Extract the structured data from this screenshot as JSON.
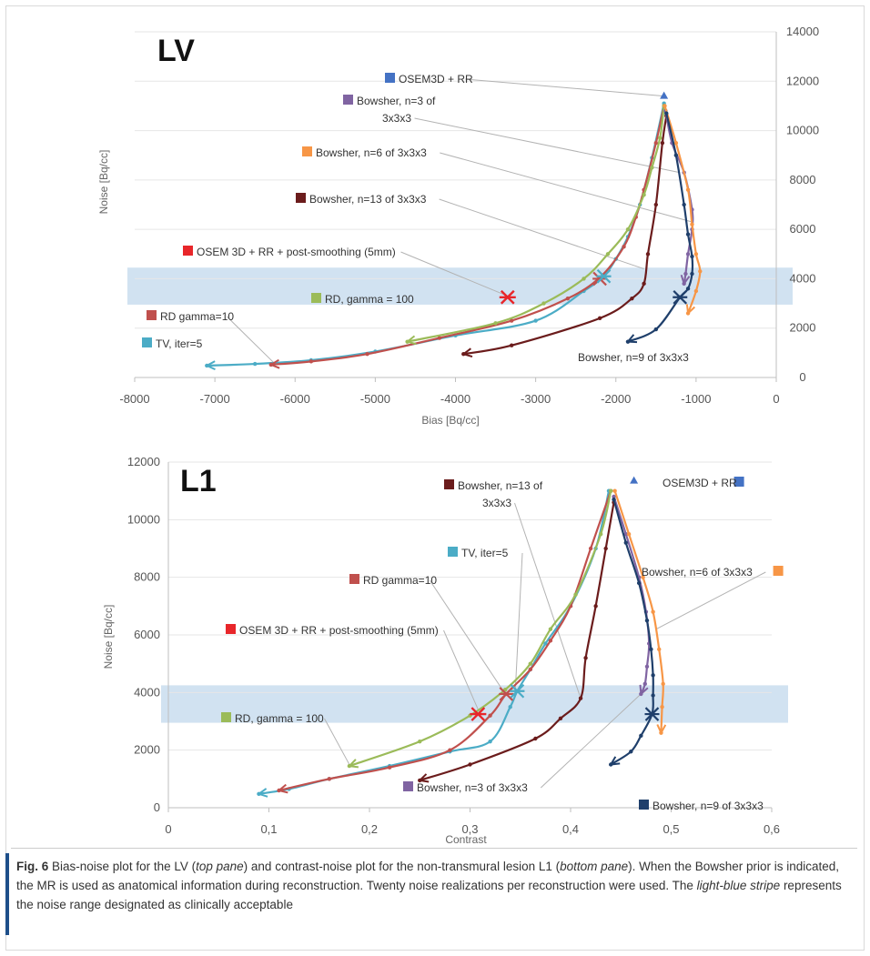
{
  "chart_data": [
    {
      "type": "line",
      "panel_label": "LV",
      "xlabel": "Bias [Bq/cc]",
      "ylabel": "Noise [Bq/cc]",
      "xlim": [
        -8000,
        0
      ],
      "ylim": [
        0,
        14000
      ],
      "x_ticks": [
        "-8000",
        "-7000",
        "-6000",
        "-5000",
        "-4000",
        "-3000",
        "-2000",
        "-1000",
        "0"
      ],
      "y_ticks": [
        "0",
        "2000",
        "4000",
        "6000",
        "8000",
        "10000",
        "12000",
        "14000"
      ],
      "y_axis_side": "right",
      "acceptable_noise_band": [
        2950,
        4450
      ],
      "series": [
        {
          "name": "OSEM3D + RR",
          "color": "#4472c4",
          "marker": "triangle",
          "points": [
            [
              -1400,
              11400
            ]
          ]
        },
        {
          "name": "TV, iter=5",
          "color": "#4bacc6",
          "points": [
            [
              -1400,
              11100
            ],
            [
              -1550,
              8900
            ],
            [
              -1700,
              7000
            ],
            [
              -1850,
              5700
            ],
            [
              -2000,
              4800
            ],
            [
              -2150,
              4100
            ],
            [
              -2400,
              3500
            ],
            [
              -3000,
              2300
            ],
            [
              -4000,
              1700
            ],
            [
              -5000,
              1050
            ],
            [
              -5800,
              700
            ],
            [
              -6500,
              550
            ],
            [
              -7100,
              480
            ]
          ]
        },
        {
          "name": "RD gamma=10",
          "color": "#c0504d",
          "points": [
            [
              -1400,
              11000
            ],
            [
              -1500,
              9500
            ],
            [
              -1650,
              7600
            ],
            [
              -1750,
              6500
            ],
            [
              -1900,
              5300
            ],
            [
              -2200,
              4050
            ],
            [
              -2600,
              3200
            ],
            [
              -3300,
              2300
            ],
            [
              -4200,
              1600
            ],
            [
              -5100,
              950
            ],
            [
              -5800,
              650
            ],
            [
              -6300,
              520
            ]
          ]
        },
        {
          "name": "RD, gamma = 100",
          "color": "#9bbb59",
          "points": [
            [
              -1400,
              11000
            ],
            [
              -1450,
              9700
            ],
            [
              -1550,
              8500
            ],
            [
              -1650,
              7400
            ],
            [
              -1850,
              6000
            ],
            [
              -2100,
              5000
            ],
            [
              -2400,
              4000
            ],
            [
              -2900,
              3000
            ],
            [
              -3500,
              2200
            ],
            [
              -4600,
              1450
            ]
          ]
        },
        {
          "name": "Bowsher, n=13 of 3x3x3",
          "color": "#6b1c1c",
          "points": [
            [
              -1370,
              10600
            ],
            [
              -1420,
              9500
            ],
            [
              -1500,
              7000
            ],
            [
              -1600,
              5000
            ],
            [
              -1650,
              3800
            ],
            [
              -1800,
              3200
            ],
            [
              -2200,
              2400
            ],
            [
              -3300,
              1300
            ],
            [
              -3900,
              950
            ]
          ]
        },
        {
          "name": "Bowsher, n=3 of 3x3x3",
          "color": "#8064a2",
          "points": [
            [
              -1380,
              10800
            ],
            [
              -1300,
              9500
            ],
            [
              -1150,
              8300
            ],
            [
              -1050,
              6800
            ],
            [
              -1050,
              6000
            ],
            [
              -1100,
              5000
            ],
            [
              -1130,
              4200
            ],
            [
              -1150,
              3800
            ]
          ]
        },
        {
          "name": "Bowsher, n=6 of 3x3x3",
          "color": "#f79646",
          "points": [
            [
              -1390,
              11000
            ],
            [
              -1250,
              9500
            ],
            [
              -1100,
              7600
            ],
            [
              -1050,
              6200
            ],
            [
              -1000,
              5000
            ],
            [
              -950,
              4300
            ],
            [
              -1000,
              3500
            ],
            [
              -1100,
              2600
            ]
          ]
        },
        {
          "name": "Bowsher, n=9 of 3x3x3",
          "color": "#1f3f6b",
          "points": [
            [
              -1370,
              10700
            ],
            [
              -1250,
              9000
            ],
            [
              -1150,
              7000
            ],
            [
              -1100,
              5800
            ],
            [
              -1050,
              4900
            ],
            [
              -1050,
              4200
            ],
            [
              -1100,
              3600
            ],
            [
              -1200,
              3250
            ],
            [
              -1500,
              1950
            ],
            [
              -1850,
              1450
            ]
          ]
        },
        {
          "name": "OSEM 3D + RR + post-smoothing (5mm)",
          "color": "#e8262a",
          "marker": "star",
          "points": [
            [
              -3350,
              3250
            ]
          ]
        }
      ],
      "end_markers": [
        {
          "color": "#c0504d",
          "points": [
            [
              -2200,
              4000
            ]
          ]
        },
        {
          "color": "#4bacc6",
          "points": [
            [
              -2150,
              4100
            ]
          ]
        },
        {
          "color": "#1f3f6b",
          "points": [
            [
              -1200,
              3250
            ]
          ]
        }
      ],
      "annotations": [
        {
          "text": "OSEM3D + RR",
          "color": "#4472c4",
          "target": [
            -1400,
            11400
          ]
        },
        {
          "text": "Bowsher, n=3 of",
          "text2": "3x3x3",
          "color": "#8064a2",
          "target": [
            -1200,
            8300
          ]
        },
        {
          "text": "Bowsher, n=6 of 3x3x3",
          "color": "#f79646",
          "target": [
            -1050,
            6300
          ]
        },
        {
          "text": "Bowsher, n=13 of 3x3x3",
          "color": "#6b1c1c",
          "target": [
            -1650,
            4400
          ]
        },
        {
          "text": "OSEM 3D + RR + post-smoothing (5mm)",
          "color": "#e8262a",
          "target": [
            -3350,
            3300
          ]
        },
        {
          "text": "RD, gamma = 100",
          "color": "#9bbb59",
          "target": null
        },
        {
          "text": "RD gamma=10",
          "color": "#c0504d",
          "target": [
            -6250,
            550
          ]
        },
        {
          "text": "TV, iter=5",
          "color": "#4bacc6",
          "target": null
        },
        {
          "text": "Bowsher, n=9 of 3x3x3",
          "color": null,
          "target": null
        }
      ]
    },
    {
      "type": "line",
      "panel_label": "L1",
      "xlabel": "Contrast",
      "ylabel": "Noise [Bq/cc]",
      "xlim": [
        0,
        0.6
      ],
      "ylim": [
        0,
        12000
      ],
      "x_ticks": [
        "0",
        "0,1",
        "0,2",
        "0,3",
        "0,4",
        "0,5",
        "0,6"
      ],
      "y_ticks": [
        "0",
        "2000",
        "4000",
        "6000",
        "8000",
        "10000",
        "12000"
      ],
      "y_axis_side": "left",
      "acceptable_noise_band": [
        2950,
        4250
      ],
      "series": [
        {
          "name": "OSEM3D + RR",
          "color": "#4472c4",
          "marker": "triangle",
          "points": [
            [
              0.463,
              11350
            ]
          ]
        },
        {
          "name": "TV, iter=5",
          "color": "#4bacc6",
          "points": [
            [
              0.438,
              11000
            ],
            [
              0.425,
              9000
            ],
            [
              0.4,
              7000
            ],
            [
              0.375,
              5700
            ],
            [
              0.36,
              4800
            ],
            [
              0.347,
              4050
            ],
            [
              0.34,
              3500
            ],
            [
              0.32,
              2300
            ],
            [
              0.28,
              1950
            ],
            [
              0.22,
              1450
            ],
            [
              0.16,
              1000
            ],
            [
              0.12,
              650
            ],
            [
              0.09,
              480
            ]
          ]
        },
        {
          "name": "RD gamma=10",
          "color": "#c0504d",
          "points": [
            [
              0.44,
              11000
            ],
            [
              0.42,
              9000
            ],
            [
              0.4,
              7000
            ],
            [
              0.38,
              5800
            ],
            [
              0.36,
              4800
            ],
            [
              0.336,
              3950
            ],
            [
              0.32,
              3200
            ],
            [
              0.28,
              2000
            ],
            [
              0.22,
              1400
            ],
            [
              0.16,
              1000
            ],
            [
              0.11,
              600
            ]
          ]
        },
        {
          "name": "RD, gamma = 100",
          "color": "#9bbb59",
          "points": [
            [
              0.44,
              11000
            ],
            [
              0.43,
              9500
            ],
            [
              0.405,
              7400
            ],
            [
              0.38,
              6200
            ],
            [
              0.36,
              5000
            ],
            [
              0.335,
              4100
            ],
            [
              0.3,
              3200
            ],
            [
              0.25,
              2300
            ],
            [
              0.18,
              1450
            ]
          ]
        },
        {
          "name": "Bowsher, n=13 of 3x3x3",
          "color": "#6b1c1c",
          "points": [
            [
              0.443,
              10600
            ],
            [
              0.435,
              9000
            ],
            [
              0.425,
              7000
            ],
            [
              0.415,
              5200
            ],
            [
              0.41,
              3800
            ],
            [
              0.39,
              3100
            ],
            [
              0.365,
              2400
            ],
            [
              0.3,
              1500
            ],
            [
              0.25,
              950
            ]
          ]
        },
        {
          "name": "Bowsher, n=3 of 3x3x3",
          "color": "#8064a2",
          "points": [
            [
              0.443,
              10800
            ],
            [
              0.455,
              9500
            ],
            [
              0.468,
              8000
            ],
            [
              0.475,
              6800
            ],
            [
              0.478,
              5700
            ],
            [
              0.476,
              4900
            ],
            [
              0.474,
              4300
            ],
            [
              0.47,
              3950
            ]
          ]
        },
        {
          "name": "Bowsher, n=6 of 3x3x3",
          "color": "#f79646",
          "points": [
            [
              0.444,
              11000
            ],
            [
              0.458,
              9500
            ],
            [
              0.472,
              8000
            ],
            [
              0.482,
              6800
            ],
            [
              0.488,
              5500
            ],
            [
              0.492,
              4300
            ],
            [
              0.491,
              3500
            ],
            [
              0.49,
              2600
            ]
          ]
        },
        {
          "name": "Bowsher, n=9 of 3x3x3",
          "color": "#1f3f6b",
          "points": [
            [
              0.443,
              10700
            ],
            [
              0.455,
              9200
            ],
            [
              0.468,
              7800
            ],
            [
              0.476,
              6500
            ],
            [
              0.48,
              5500
            ],
            [
              0.482,
              4600
            ],
            [
              0.482,
              3900
            ],
            [
              0.481,
              3250
            ],
            [
              0.47,
              2500
            ],
            [
              0.46,
              1950
            ],
            [
              0.44,
              1500
            ]
          ]
        },
        {
          "name": "OSEM 3D + RR + post-smoothing (5mm)",
          "color": "#e8262a",
          "marker": "star",
          "points": [
            [
              0.308,
              3250
            ]
          ]
        }
      ],
      "end_markers": [
        {
          "color": "#c0504d",
          "points": [
            [
              0.336,
              3950
            ]
          ]
        },
        {
          "color": "#4bacc6",
          "points": [
            [
              0.347,
              4050
            ]
          ]
        },
        {
          "color": "#1f3f6b",
          "points": [
            [
              0.481,
              3250
            ]
          ]
        }
      ],
      "annotations": [
        {
          "text": "Bowsher, n=13 of",
          "text2": "3x3x3",
          "color": "#6b1c1c",
          "target": [
            0.41,
            3800
          ]
        },
        {
          "text": "OSEM3D + RR",
          "color": "#4472c4",
          "target": null
        },
        {
          "text": "TV, iter=5",
          "color": "#4bacc6",
          "target": [
            0.345,
            4050
          ]
        },
        {
          "text": "RD gamma=10",
          "color": "#c0504d",
          "target": [
            0.335,
            3950
          ]
        },
        {
          "text": "Bowsher, n=6 of 3x3x3",
          "color": "#f79646",
          "target": [
            0.485,
            6200
          ]
        },
        {
          "text": "OSEM 3D + RR + post-smoothing (5mm)",
          "color": "#e8262a",
          "target": [
            0.31,
            3250
          ]
        },
        {
          "text": "RD, gamma = 100",
          "color": "#9bbb59",
          "target": [
            0.18,
            1500
          ]
        },
        {
          "text": "Bowsher, n=3 of 3x3x3",
          "color": "#8064a2",
          "target": [
            0.47,
            3950
          ]
        },
        {
          "text": "Bowsher, n=9 of 3x3x3",
          "color": "#1f3f6b",
          "target": null
        }
      ]
    }
  ],
  "caption": {
    "fig_number": "Fig. 6",
    "part1": " Bias-noise plot for the LV (",
    "em1": "top pane",
    "part2": ") and contrast-noise plot for the non-transmural lesion L1 (",
    "em2": "bottom pane",
    "part3": "). When the Bowsher prior is indicated, the MR is used as anatomical information during reconstruction. Twenty noise realizations per reconstruction were used. The ",
    "em3": "light-blue stripe",
    "part4": " represents the noise range designated as clinically acceptable"
  }
}
